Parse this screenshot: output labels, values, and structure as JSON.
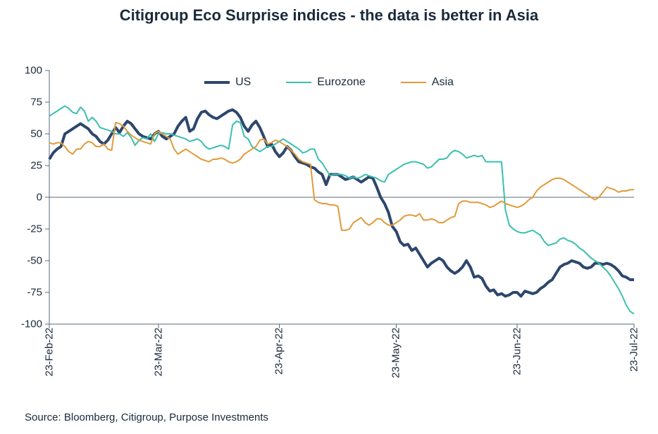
{
  "chart": {
    "type": "line",
    "title": "Citigroup Eco Surprise indices - the data is better in Asia",
    "title_fontsize": 22,
    "title_color": "#1a2a3a",
    "background_color": "#ffffff",
    "axis_color": "#5a6a78",
    "tick_mark_color": "#5a6a78",
    "zero_line_color": "#5a6a78",
    "label_color": "#1a2a3a",
    "label_fontsize": 15,
    "ylim": [
      -100,
      100
    ],
    "ytick_step": 25,
    "y_ticks": [
      100,
      75,
      50,
      25,
      0,
      -25,
      -50,
      -75,
      -100
    ],
    "x_labels": [
      "23-Feb-22",
      "23-Mar-22",
      "23-Apr-22",
      "23-May-22",
      "23-Jun-22",
      "23-Jul-22"
    ],
    "x_positions": [
      0,
      28,
      59,
      89,
      120,
      150
    ],
    "x_range": [
      0,
      150
    ],
    "legend": {
      "items": [
        {
          "label": "US",
          "color": "#2d476d",
          "width": 4
        },
        {
          "label": "Eurozone",
          "color": "#3bbfb0",
          "width": 2
        },
        {
          "label": "Asia",
          "color": "#e09b3a",
          "width": 2
        }
      ]
    },
    "series": [
      {
        "name": "US",
        "color": "#2d476d",
        "width": 4,
        "values": [
          30,
          35,
          38,
          40,
          50,
          52,
          54,
          56,
          58,
          56,
          54,
          50,
          48,
          44,
          42,
          45,
          50,
          55,
          51,
          56,
          60,
          58,
          54,
          50,
          48,
          47,
          46,
          50,
          52,
          48,
          46,
          48,
          50,
          56,
          60,
          63,
          52,
          54,
          62,
          67,
          68,
          65,
          63,
          62,
          64,
          66,
          68,
          69,
          67,
          63,
          56,
          52,
          57,
          60,
          55,
          48,
          40,
          42,
          36,
          32,
          35,
          40,
          37,
          32,
          28,
          27,
          26,
          24,
          23,
          20,
          18,
          10,
          18,
          18,
          18,
          16,
          14,
          15,
          16,
          14,
          12,
          14,
          16,
          15,
          8,
          0,
          -5,
          -12,
          -23,
          -27,
          -35,
          -38,
          -37,
          -42,
          -40,
          -45,
          -50,
          -55,
          -52,
          -50,
          -48,
          -50,
          -55,
          -58,
          -60,
          -58,
          -55,
          -50,
          -55,
          -63,
          -62,
          -64,
          -70,
          -74,
          -73,
          -77,
          -76,
          -78,
          -77,
          -75,
          -75,
          -78,
          -74,
          -75,
          -76,
          -75,
          -72,
          -70,
          -67,
          -65,
          -60,
          -55,
          -53,
          -52,
          -50,
          -51,
          -52,
          -55,
          -56,
          -55,
          -52,
          -52,
          -53,
          -52,
          -53,
          -55,
          -58,
          -62,
          -63,
          -65,
          -65
        ]
      },
      {
        "name": "Eurozone",
        "color": "#3bbfb0",
        "width": 2,
        "values": [
          64,
          66,
          68,
          70,
          72,
          70,
          67,
          66,
          71,
          68,
          60,
          63,
          60,
          55,
          54,
          53,
          52,
          50,
          50,
          48,
          51,
          47,
          41,
          45,
          47,
          46,
          50,
          44,
          50,
          51,
          50,
          50,
          49,
          48,
          47,
          46,
          44,
          45,
          46,
          44,
          40,
          38,
          39,
          40,
          41,
          40,
          38,
          57,
          60,
          59,
          48,
          46,
          40,
          38,
          36,
          38,
          40,
          40,
          42,
          44,
          46,
          44,
          42,
          40,
          38,
          35,
          36,
          38,
          38,
          30,
          27,
          22,
          17,
          18,
          18,
          18,
          17,
          15,
          16,
          15,
          16,
          18,
          17,
          16,
          15,
          13,
          12,
          18,
          20,
          22,
          24,
          26,
          27,
          28,
          28,
          27,
          26,
          23,
          24,
          27,
          30,
          30,
          31,
          35,
          37,
          36,
          34,
          31,
          32,
          33,
          32,
          33,
          28,
          28,
          28,
          28,
          28,
          -10,
          -22,
          -25,
          -27,
          -28,
          -28,
          -27,
          -26,
          -28,
          -30,
          -35,
          -38,
          -37,
          -36,
          -33,
          -32,
          -34,
          -35,
          -37,
          -40,
          -42,
          -45,
          -48,
          -50,
          -52,
          -55,
          -58,
          -62,
          -67,
          -72,
          -78,
          -85,
          -90,
          -92
        ]
      },
      {
        "name": "Asia",
        "color": "#e09b3a",
        "width": 2,
        "values": [
          43,
          42,
          43,
          43,
          40,
          36,
          34,
          38,
          38,
          42,
          44,
          43,
          40,
          40,
          42,
          38,
          37,
          59,
          58,
          56,
          52,
          49,
          47,
          45,
          44,
          43,
          42,
          50,
          52,
          50,
          48,
          46,
          38,
          34,
          36,
          38,
          36,
          34,
          32,
          30,
          29,
          28,
          30,
          30,
          31,
          30,
          28,
          27,
          28,
          30,
          34,
          36,
          38,
          40,
          45,
          46,
          42,
          43,
          45,
          44,
          42,
          40,
          37,
          34,
          30,
          28,
          27,
          26,
          -2,
          -4,
          -5,
          -5,
          -6,
          -6,
          -7,
          -26,
          -26,
          -25,
          -20,
          -18,
          -16,
          -20,
          -22,
          -20,
          -17,
          -17,
          -20,
          -22,
          -22,
          -20,
          -18,
          -15,
          -14,
          -14,
          -15,
          -13,
          -18,
          -18,
          -17,
          -18,
          -20,
          -20,
          -18,
          -16,
          -15,
          -5,
          -3,
          -3,
          -4,
          -4,
          -4,
          -5,
          -6,
          -8,
          -7,
          -5,
          -3,
          -5,
          -6,
          -7,
          -8,
          -7,
          -5,
          -2,
          0,
          5,
          8,
          10,
          12,
          14,
          15,
          15,
          14,
          12,
          10,
          8,
          6,
          4,
          2,
          0,
          -2,
          0,
          4,
          8,
          7,
          6,
          4,
          5,
          5,
          6,
          6
        ]
      }
    ],
    "source": "Source: Bloomberg, Citigroup, Purpose Investments"
  }
}
